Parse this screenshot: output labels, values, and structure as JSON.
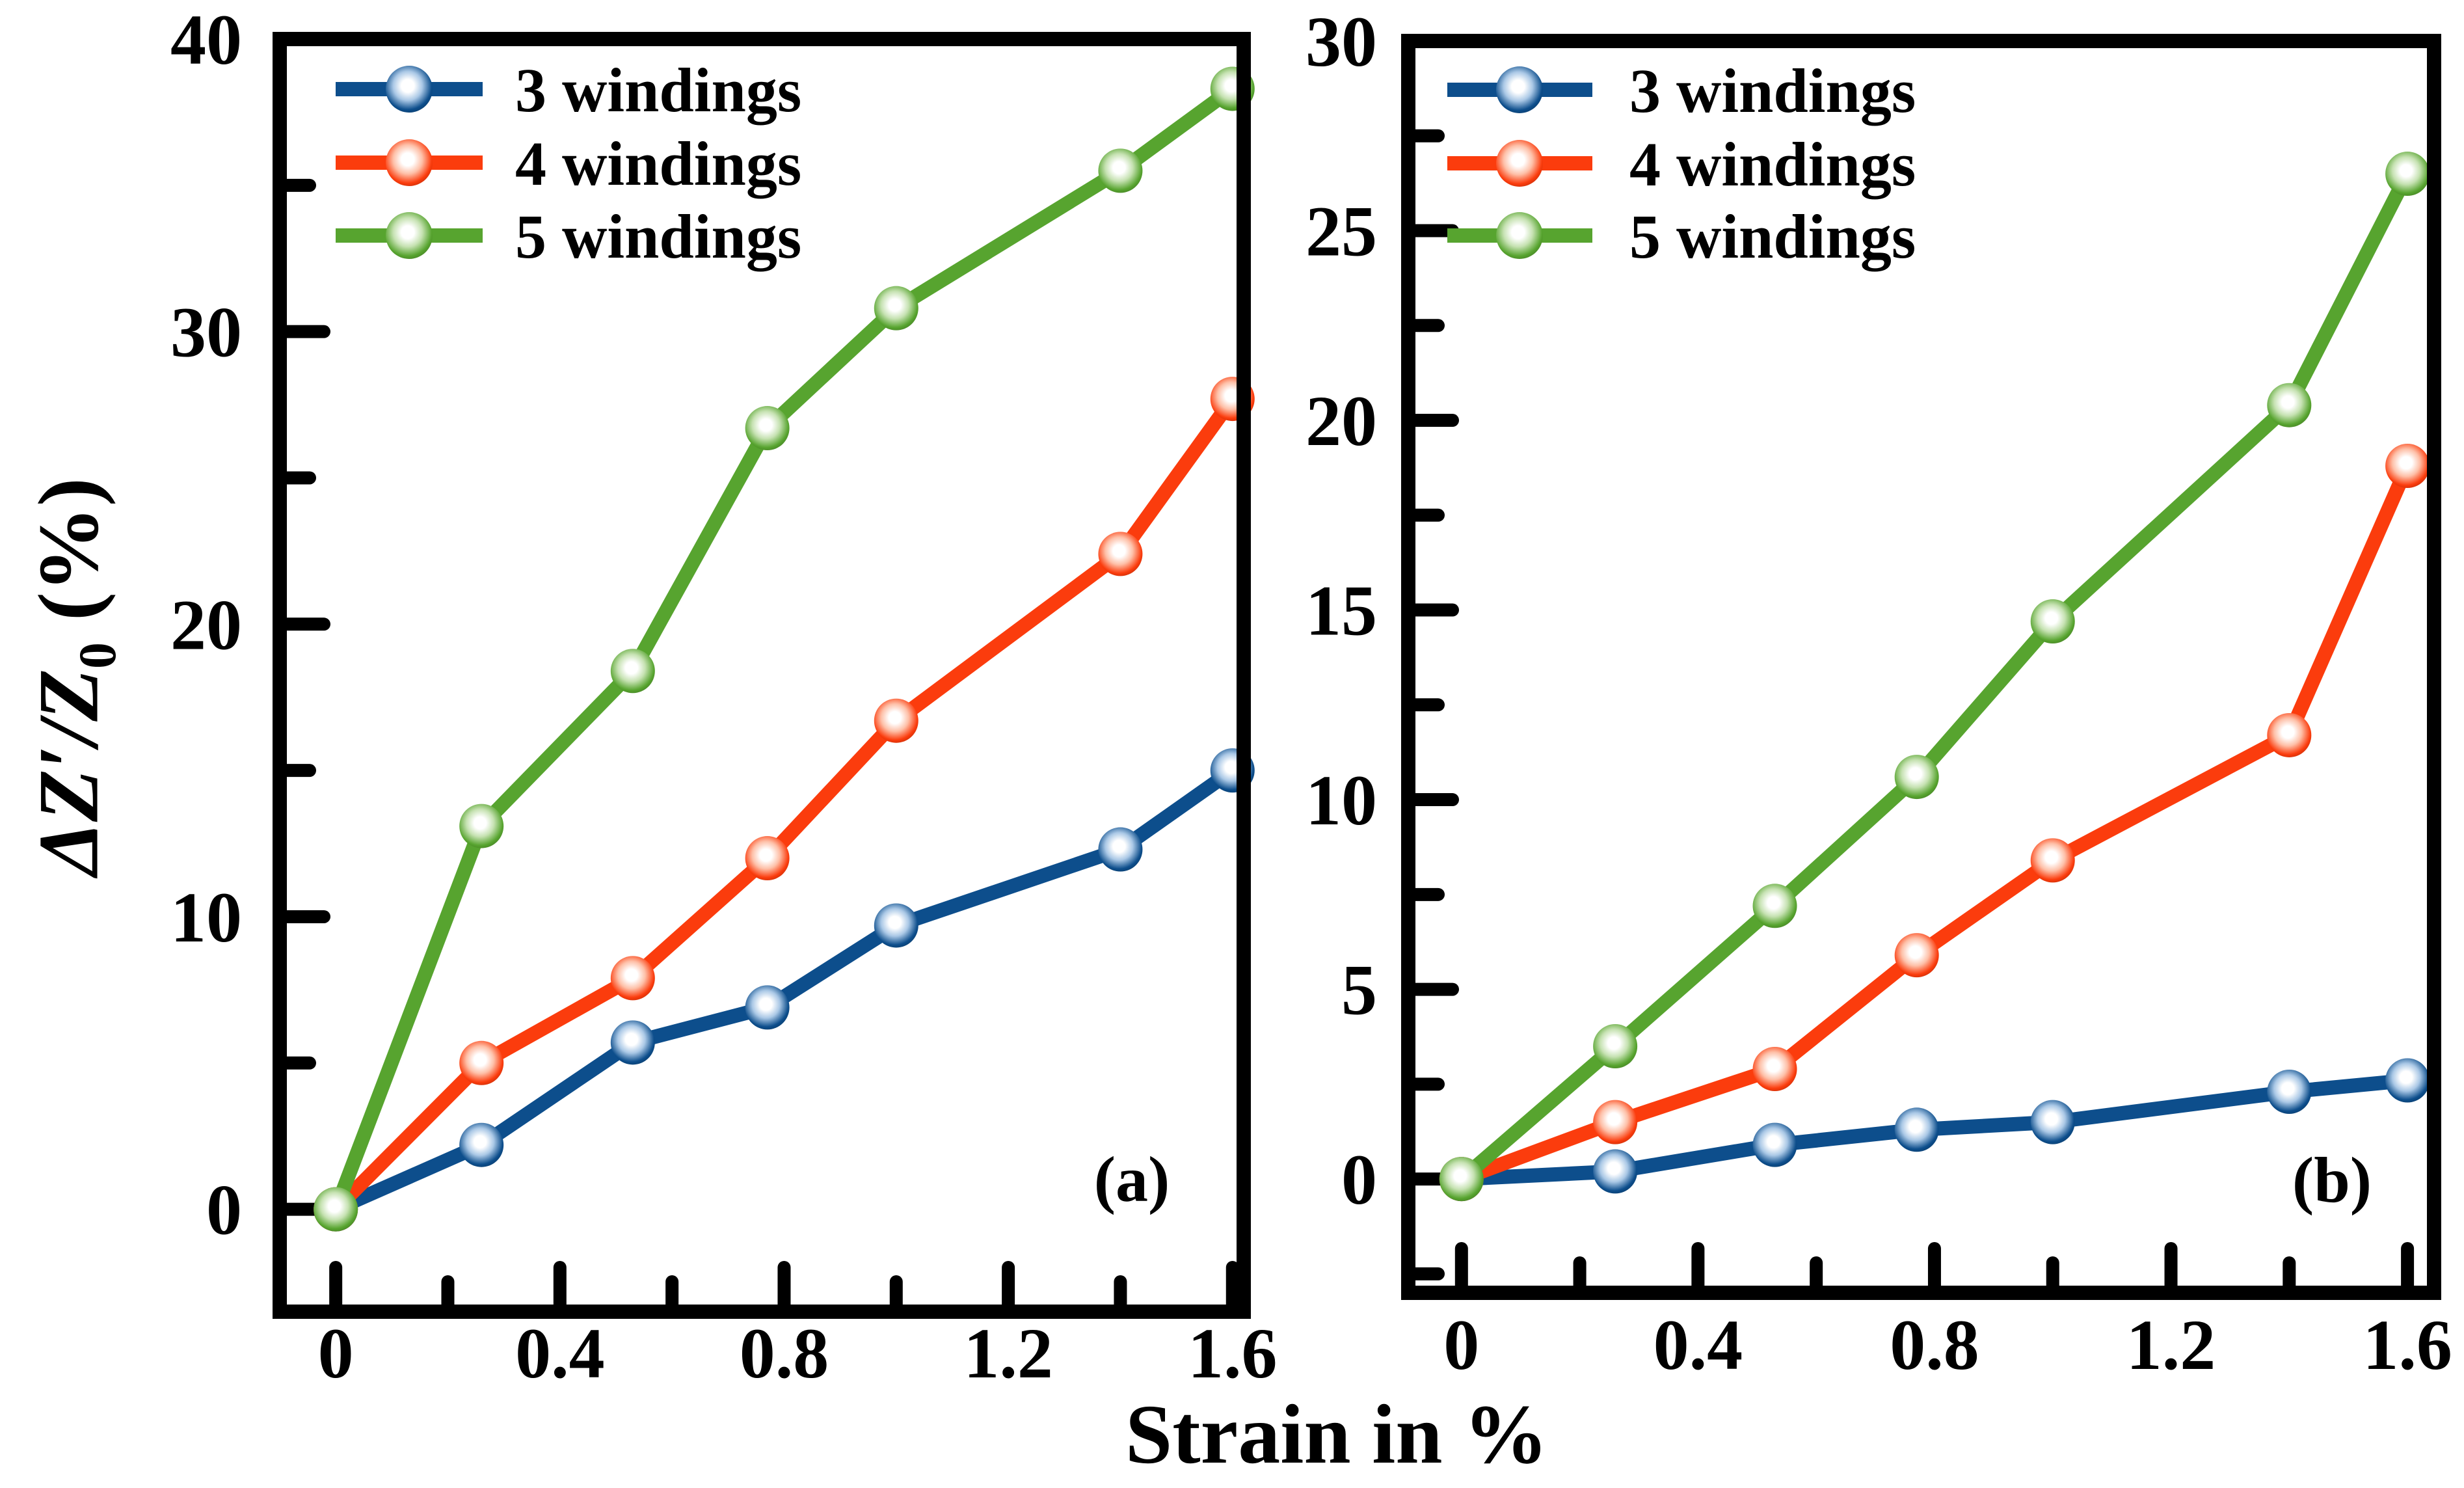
{
  "figure": {
    "background": "#ffffff",
    "x_title": "Strain in %",
    "y_title": {
      "main": "ΔZ′/Z",
      "sub": "0",
      "unit": " (%)"
    }
  },
  "colors": {
    "frame": "#000000",
    "text": "#000000",
    "blue": {
      "main": "#0d4e8c",
      "light": "#aac8e6",
      "dark": "#0a3c6b"
    },
    "red": {
      "main": "#fb3c0d",
      "light": "#fec0a8",
      "dark": "#c52e08"
    },
    "green": {
      "main": "#57a42f",
      "light": "#c6e2b2",
      "dark": "#447f24"
    }
  },
  "chart_data": [
    {
      "id": "a",
      "type": "line",
      "panel_label": "(a)",
      "xlabel": "Strain in %",
      "ylabel": "ΔZ′/Z0 (%)",
      "x": [
        0,
        0.26,
        0.53,
        0.77,
        1.0,
        1.4,
        1.6
      ],
      "series": [
        {
          "name": "3 windings",
          "color_key": "blue",
          "values": [
            0,
            2.2,
            5.7,
            6.9,
            9.7,
            12.3,
            15.0
          ]
        },
        {
          "name": "4 windings",
          "color_key": "red",
          "values": [
            0,
            5.0,
            7.9,
            12.0,
            16.7,
            22.4,
            27.7
          ]
        },
        {
          "name": "5 windings",
          "color_key": "green",
          "values": [
            0,
            13.1,
            18.4,
            26.7,
            30.8,
            35.5,
            38.3
          ]
        }
      ],
      "xlim": [
        -0.1,
        1.62
      ],
      "ylim": [
        -3.5,
        40
      ],
      "x_ticks": {
        "major": [
          0,
          0.4,
          0.8,
          1.2,
          1.6
        ],
        "minor": [
          0.2,
          0.6,
          1.0,
          1.4
        ],
        "labels": [
          "0",
          "0.4",
          "0.8",
          "1.2",
          "1.6"
        ]
      },
      "y_ticks": {
        "major": [
          0,
          10,
          20,
          30,
          40
        ],
        "minor": [
          5,
          15,
          25,
          35
        ],
        "labels": [
          "0",
          "10",
          "20",
          "30",
          "40"
        ]
      },
      "legend_position": "top-left",
      "grid": false
    },
    {
      "id": "b",
      "type": "line",
      "panel_label": "(b)",
      "xlabel": "Strain in %",
      "ylabel": "ΔZ′/Z0 (%)",
      "x": [
        0,
        0.26,
        0.53,
        0.77,
        1.0,
        1.4,
        1.6
      ],
      "series": [
        {
          "name": "3 windings",
          "color_key": "blue",
          "values": [
            0,
            0.2,
            0.9,
            1.3,
            1.5,
            2.3,
            2.6
          ]
        },
        {
          "name": "4 windings",
          "color_key": "red",
          "values": [
            0,
            1.5,
            2.9,
            5.9,
            8.4,
            11.7,
            18.8
          ]
        },
        {
          "name": "5 windings",
          "color_key": "green",
          "values": [
            0,
            3.5,
            7.2,
            10.6,
            14.7,
            20.4,
            26.5
          ]
        }
      ],
      "xlim": [
        -0.09,
        1.645
      ],
      "ylim": [
        -3,
        30
      ],
      "x_ticks": {
        "major": [
          0,
          0.4,
          0.8,
          1.2,
          1.6
        ],
        "minor": [
          0.2,
          0.6,
          1.0,
          1.4
        ],
        "labels": [
          "0",
          "0.4",
          "0.8",
          "1.2",
          "1.6"
        ]
      },
      "y_ticks": {
        "major": [
          0,
          5,
          10,
          15,
          20,
          25,
          30
        ],
        "minor": [
          -2.5,
          2.5,
          7.5,
          12.5,
          17.5,
          22.5,
          27.5
        ],
        "labels": [
          "0",
          "5",
          "10",
          "15",
          "20",
          "25",
          "30"
        ]
      },
      "legend_position": "top-left",
      "grid": false
    }
  ]
}
